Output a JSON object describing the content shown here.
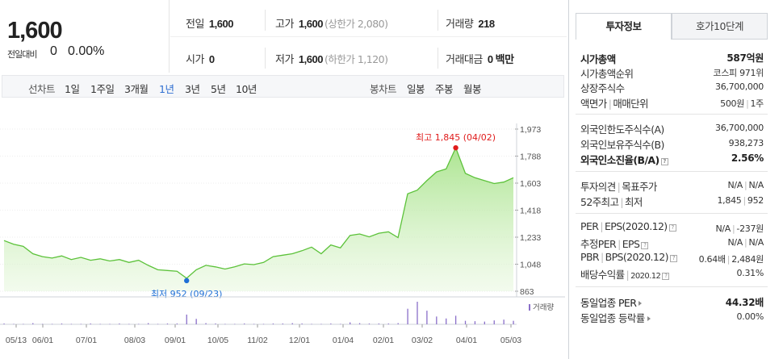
{
  "summary": {
    "price": "1,600",
    "change_label": "전일대비",
    "change_value": "0",
    "change_rate": "0.00%"
  },
  "quote": {
    "prev_label": "전일",
    "prev_value": "1,600",
    "high_label": "고가",
    "high_value": "1,600",
    "upper_limit": "(상한가 2,080)",
    "volume_label": "거래량",
    "volume_value": "218",
    "open_label": "시가",
    "open_value": "0",
    "low_label": "저가",
    "low_value": "1,600",
    "lower_limit": "(하한가 1,120)",
    "amount_label": "거래대금",
    "amount_value": "0 백만"
  },
  "period_bar": {
    "line_chart_label": "선차트",
    "line_periods": [
      "1일",
      "1주일",
      "3개월",
      "1년",
      "3년",
      "5년",
      "10년"
    ],
    "active_period": "1년",
    "candle_chart_label": "봉차트",
    "candle_periods": [
      "일봉",
      "주봉",
      "월봉"
    ]
  },
  "chart_data": {
    "type": "area",
    "y_ticks": [
      "1,973",
      "1,788",
      "1,603",
      "1,418",
      "1,233",
      "1,048",
      "863"
    ],
    "ylim": [
      863,
      1973
    ],
    "x_ticks": [
      "05/13",
      "06/01",
      "07/01",
      "08/03",
      "09/01",
      "10/05",
      "11/02",
      "12/01",
      "01/04",
      "02/01",
      "03/02",
      "04/01",
      "05/03"
    ],
    "high_annotation": "최고 1,845 (04/02)",
    "low_annotation": "최저 952 (09/23)",
    "volume_label": "거래량",
    "line_color": "#5cc23a",
    "high_color": "#e01b1b",
    "low_color": "#1e6fd6",
    "x": [
      "05/13",
      "05/20",
      "05/27",
      "06/03",
      "06/10",
      "06/17",
      "06/24",
      "07/01",
      "07/08",
      "07/15",
      "07/22",
      "07/29",
      "08/05",
      "08/12",
      "08/19",
      "08/26",
      "09/02",
      "09/09",
      "09/16",
      "09/23",
      "09/30",
      "10/07",
      "10/14",
      "10/21",
      "10/28",
      "11/04",
      "11/11",
      "11/18",
      "11/25",
      "12/02",
      "12/09",
      "12/16",
      "12/23",
      "12/30",
      "01/06",
      "01/13",
      "01/20",
      "01/27",
      "02/03",
      "02/10",
      "02/17",
      "02/24",
      "03/02",
      "03/09",
      "03/16",
      "03/23",
      "03/30",
      "04/02",
      "04/06",
      "04/13",
      "04/20",
      "04/27",
      "05/03",
      "05/10"
    ],
    "values": [
      1210,
      1185,
      1170,
      1120,
      1100,
      1090,
      1105,
      1080,
      1095,
      1075,
      1085,
      1070,
      1080,
      1060,
      1075,
      1040,
      1010,
      1005,
      1000,
      952,
      1010,
      1040,
      1030,
      1015,
      1030,
      1050,
      1045,
      1060,
      1100,
      1110,
      1120,
      1140,
      1165,
      1120,
      1180,
      1160,
      1245,
      1255,
      1235,
      1260,
      1270,
      1230,
      1530,
      1555,
      1620,
      1680,
      1700,
      1845,
      1670,
      1640,
      1620,
      1600,
      1610,
      1640
    ],
    "volume": [
      2,
      1,
      1,
      3,
      1,
      1,
      2,
      1,
      1,
      2,
      1,
      1,
      2,
      1,
      1,
      3,
      1,
      2,
      2,
      25,
      14,
      3,
      2,
      1,
      1,
      2,
      1,
      1,
      2,
      2,
      3,
      2,
      1,
      1,
      2,
      1,
      5,
      3,
      2,
      2,
      2,
      3,
      40,
      58,
      35,
      20,
      15,
      22,
      9,
      8,
      7,
      10,
      12,
      9
    ]
  },
  "info_panel": {
    "tabs": [
      "투자정보",
      "호가10단계"
    ],
    "market_cap_label": "시가총액",
    "market_cap_value": "587억원",
    "rank_label": "시가총액순위",
    "rank_value": "코스피 971위",
    "listed_shares_label": "상장주식수",
    "listed_shares_value": "36,700,000",
    "par_label": "액면가",
    "unit_label": "매매단위",
    "par_value": "500원",
    "unit_value": "1주",
    "foreign_limit_label": "외국인한도주식수(A)",
    "foreign_limit_value": "36,700,000",
    "foreign_hold_label": "외국인보유주식수(B)",
    "foreign_hold_value": "938,273",
    "foreign_ratio_label": "외국인소진율(B/A)",
    "foreign_ratio_value": "2.56%",
    "opinion_label": "투자의견",
    "target_label": "목표주가",
    "opinion_value": "N/A",
    "target_value": "N/A",
    "high52_label": "52주최고",
    "low52_label": "최저",
    "high52_value": "1,845",
    "low52_value": "952",
    "per_label": "PER",
    "eps_label": "EPS(2020.12)",
    "per_value": "N/A",
    "eps_value": "-237원",
    "est_per_label": "추정PER",
    "est_eps_label": "EPS",
    "est_per_value": "N/A",
    "est_eps_value": "N/A",
    "pbr_label": "PBR",
    "bps_label": "BPS(2020.12)",
    "pbr_value": "0.64배",
    "bps_value": "2,484원",
    "dividend_label": "배당수익률",
    "dividend_date": "2020.12",
    "dividend_value": "0.31%",
    "industry_per_label": "동일업종 PER",
    "industry_per_value": "44.32배",
    "industry_change_label": "동일업종 등락률",
    "industry_change_value": "0.00%"
  }
}
